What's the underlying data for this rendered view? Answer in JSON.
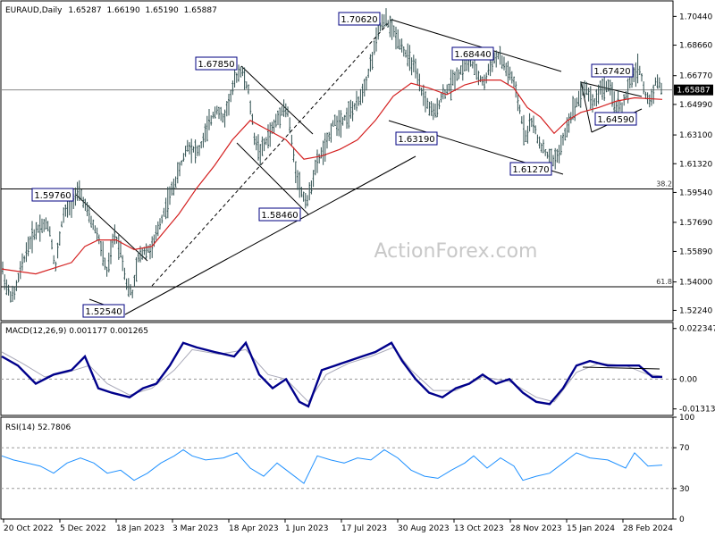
{
  "chart_data": {
    "type": "ohlc",
    "header": {
      "symbol": "EURAUD,Daily",
      "open": "1.65287",
      "high": "1.66190",
      "low": "1.65190",
      "close": "1.65887"
    },
    "watermark": "ActionForex.com",
    "price_axis": {
      "range": [
        1.516,
        1.714
      ],
      "ticks": [
        "1.70440",
        "1.68660",
        "1.66770",
        "1.64990",
        "1.63100",
        "1.61320",
        "1.59540",
        "1.57690",
        "1.55890",
        "1.54000",
        "1.52240"
      ],
      "current_price": "1.65887",
      "current_value": 1.65887
    },
    "x_axis": {
      "labels": [
        "20 Oct 2022",
        "5 Dec 2022",
        "18 Jan 2023",
        "3 Mar 2023",
        "18 Apr 2023",
        "1 Jun 2023",
        "17 Jul 2023",
        "30 Aug 2023",
        "13 Oct 2023",
        "28 Nov 2023",
        "15 Jan 2024",
        "28 Feb 2024"
      ]
    },
    "fib_levels": [
      {
        "label": "38.2",
        "value": 1.5976
      },
      {
        "label": "61.8",
        "value": 1.537
      }
    ],
    "price_labels": [
      "1.70620",
      "1.68440",
      "1.67850",
      "1.67420",
      "1.64590",
      "1.63190",
      "1.61270",
      "1.59760",
      "1.58460",
      "1.52540"
    ],
    "price_path": [
      [
        0,
        1.555
      ],
      [
        8,
        1.535
      ],
      [
        15,
        1.53
      ],
      [
        22,
        1.545
      ],
      [
        30,
        1.56
      ],
      [
        38,
        1.57
      ],
      [
        45,
        1.575
      ],
      [
        55,
        1.575
      ],
      [
        62,
        1.548
      ],
      [
        70,
        1.58
      ],
      [
        82,
        1.592
      ],
      [
        90,
        1.595
      ],
      [
        100,
        1.58
      ],
      [
        110,
        1.568
      ],
      [
        120,
        1.545
      ],
      [
        128,
        1.57
      ],
      [
        135,
        1.56
      ],
      [
        142,
        1.538
      ],
      [
        148,
        1.532
      ],
      [
        155,
        1.555
      ],
      [
        162,
        1.56
      ],
      [
        170,
        1.56
      ],
      [
        178,
        1.575
      ],
      [
        188,
        1.59
      ],
      [
        200,
        1.608
      ],
      [
        210,
        1.625
      ],
      [
        222,
        1.62
      ],
      [
        232,
        1.635
      ],
      [
        242,
        1.648
      ],
      [
        250,
        1.64
      ],
      [
        258,
        1.655
      ],
      [
        265,
        1.668
      ],
      [
        270,
        1.672
      ],
      [
        278,
        1.658
      ],
      [
        285,
        1.628
      ],
      [
        292,
        1.62
      ],
      [
        300,
        1.63
      ],
      [
        308,
        1.638
      ],
      [
        316,
        1.648
      ],
      [
        322,
        1.645
      ],
      [
        330,
        1.612
      ],
      [
        338,
        1.594
      ],
      [
        345,
        1.59
      ],
      [
        350,
        1.605
      ],
      [
        358,
        1.618
      ],
      [
        366,
        1.625
      ],
      [
        372,
        1.638
      ],
      [
        382,
        1.64
      ],
      [
        392,
        1.645
      ],
      [
        400,
        1.65
      ],
      [
        410,
        1.665
      ],
      [
        418,
        1.682
      ],
      [
        425,
        1.698
      ],
      [
        432,
        1.702
      ],
      [
        440,
        1.695
      ],
      [
        448,
        1.688
      ],
      [
        455,
        1.68
      ],
      [
        462,
        1.675
      ],
      [
        470,
        1.66
      ],
      [
        478,
        1.65
      ],
      [
        486,
        1.643
      ],
      [
        494,
        1.655
      ],
      [
        502,
        1.66
      ],
      [
        510,
        1.668
      ],
      [
        518,
        1.672
      ],
      [
        526,
        1.678
      ],
      [
        534,
        1.668
      ],
      [
        542,
        1.663
      ],
      [
        550,
        1.676
      ],
      [
        558,
        1.68
      ],
      [
        566,
        1.672
      ],
      [
        574,
        1.665
      ],
      [
        582,
        1.645
      ],
      [
        588,
        1.63
      ],
      [
        595,
        1.64
      ],
      [
        602,
        1.628
      ],
      [
        610,
        1.62
      ],
      [
        618,
        1.615
      ],
      [
        626,
        1.62
      ],
      [
        634,
        1.635
      ],
      [
        640,
        1.645
      ],
      [
        646,
        1.652
      ],
      [
        652,
        1.66
      ],
      [
        658,
        1.658
      ],
      [
        664,
        1.65
      ],
      [
        672,
        1.66
      ],
      [
        680,
        1.662
      ],
      [
        688,
        1.65
      ],
      [
        696,
        1.648
      ],
      [
        702,
        1.658
      ],
      [
        710,
        1.67
      ],
      [
        716,
        1.672
      ],
      [
        722,
        1.655
      ],
      [
        728,
        1.652
      ],
      [
        734,
        1.665
      ],
      [
        742,
        1.659
      ]
    ],
    "ma_path": [
      [
        2,
        1.548
      ],
      [
        40,
        1.545
      ],
      [
        80,
        1.552
      ],
      [
        95,
        1.562
      ],
      [
        110,
        1.566
      ],
      [
        130,
        1.566
      ],
      [
        150,
        1.56
      ],
      [
        170,
        1.562
      ],
      [
        185,
        1.572
      ],
      [
        200,
        1.582
      ],
      [
        220,
        1.598
      ],
      [
        240,
        1.612
      ],
      [
        260,
        1.628
      ],
      [
        280,
        1.64
      ],
      [
        300,
        1.634
      ],
      [
        320,
        1.628
      ],
      [
        340,
        1.616
      ],
      [
        360,
        1.618
      ],
      [
        380,
        1.622
      ],
      [
        400,
        1.628
      ],
      [
        420,
        1.64
      ],
      [
        440,
        1.655
      ],
      [
        460,
        1.663
      ],
      [
        480,
        1.66
      ],
      [
        500,
        1.656
      ],
      [
        520,
        1.662
      ],
      [
        540,
        1.665
      ],
      [
        560,
        1.665
      ],
      [
        575,
        1.66
      ],
      [
        590,
        1.648
      ],
      [
        605,
        1.642
      ],
      [
        620,
        1.632
      ],
      [
        635,
        1.64
      ],
      [
        650,
        1.645
      ],
      [
        670,
        1.648
      ],
      [
        690,
        1.652
      ],
      [
        710,
        1.654
      ],
      [
        741,
        1.653
      ]
    ],
    "macd": {
      "label": "MACD(12,26,9) 0.001177 0.001265",
      "range": [
        -0.016,
        0.025
      ],
      "ticks": [
        "0.022347",
        "0.00",
        "-0.013137"
      ],
      "macd_path": [
        [
          2,
          0.01
        ],
        [
          20,
          0.006
        ],
        [
          40,
          -0.002
        ],
        [
          60,
          0.002
        ],
        [
          80,
          0.004
        ],
        [
          95,
          0.01
        ],
        [
          110,
          -0.004
        ],
        [
          125,
          -0.006
        ],
        [
          145,
          -0.008
        ],
        [
          160,
          -0.004
        ],
        [
          175,
          -0.002
        ],
        [
          190,
          0.006
        ],
        [
          205,
          0.016
        ],
        [
          220,
          0.014
        ],
        [
          240,
          0.012
        ],
        [
          262,
          0.01
        ],
        [
          275,
          0.016
        ],
        [
          290,
          0.002
        ],
        [
          305,
          -0.004
        ],
        [
          320,
          0.0
        ],
        [
          335,
          -0.01
        ],
        [
          345,
          -0.012
        ],
        [
          360,
          0.004
        ],
        [
          375,
          0.006
        ],
        [
          390,
          0.008
        ],
        [
          405,
          0.01
        ],
        [
          420,
          0.012
        ],
        [
          438,
          0.016
        ],
        [
          450,
          0.008
        ],
        [
          465,
          0.0
        ],
        [
          480,
          -0.006
        ],
        [
          495,
          -0.008
        ],
        [
          510,
          -0.004
        ],
        [
          525,
          -0.002
        ],
        [
          540,
          0.002
        ],
        [
          555,
          -0.002
        ],
        [
          570,
          0.0
        ],
        [
          585,
          -0.006
        ],
        [
          600,
          -0.01
        ],
        [
          615,
          -0.011
        ],
        [
          630,
          -0.004
        ],
        [
          645,
          0.006
        ],
        [
          660,
          0.008
        ],
        [
          680,
          0.006
        ],
        [
          700,
          0.006
        ],
        [
          715,
          0.006
        ],
        [
          730,
          0.001
        ],
        [
          741,
          0.001
        ]
      ],
      "signal_path": [
        [
          2,
          0.012
        ],
        [
          25,
          0.007
        ],
        [
          50,
          0.001
        ],
        [
          75,
          0.003
        ],
        [
          100,
          0.006
        ],
        [
          120,
          -0.002
        ],
        [
          145,
          -0.007
        ],
        [
          170,
          -0.004
        ],
        [
          195,
          0.004
        ],
        [
          215,
          0.013
        ],
        [
          245,
          0.011
        ],
        [
          275,
          0.013
        ],
        [
          300,
          0.002
        ],
        [
          320,
          0.0
        ],
        [
          345,
          -0.01
        ],
        [
          365,
          0.002
        ],
        [
          390,
          0.007
        ],
        [
          415,
          0.01
        ],
        [
          440,
          0.014
        ],
        [
          460,
          0.004
        ],
        [
          485,
          -0.005
        ],
        [
          510,
          -0.005
        ],
        [
          540,
          0.001
        ],
        [
          570,
          -0.001
        ],
        [
          600,
          -0.008
        ],
        [
          620,
          -0.01
        ],
        [
          645,
          0.003
        ],
        [
          670,
          0.007
        ],
        [
          700,
          0.006
        ],
        [
          725,
          0.002
        ],
        [
          741,
          0.0013
        ]
      ]
    },
    "rsi": {
      "label": "RSI(14) 52.7806",
      "range": [
        0,
        100
      ],
      "ticks": [
        "100",
        "70",
        "30",
        "0"
      ],
      "reference_levels": [
        70,
        30
      ],
      "rsi_path": [
        [
          2,
          62
        ],
        [
          15,
          58
        ],
        [
          30,
          55
        ],
        [
          45,
          52
        ],
        [
          60,
          45
        ],
        [
          75,
          55
        ],
        [
          90,
          60
        ],
        [
          105,
          55
        ],
        [
          120,
          45
        ],
        [
          135,
          48
        ],
        [
          150,
          38
        ],
        [
          165,
          45
        ],
        [
          180,
          55
        ],
        [
          195,
          62
        ],
        [
          205,
          68
        ],
        [
          215,
          62
        ],
        [
          230,
          58
        ],
        [
          250,
          60
        ],
        [
          265,
          65
        ],
        [
          280,
          50
        ],
        [
          295,
          42
        ],
        [
          310,
          55
        ],
        [
          325,
          45
        ],
        [
          340,
          35
        ],
        [
          355,
          62
        ],
        [
          370,
          58
        ],
        [
          385,
          55
        ],
        [
          400,
          60
        ],
        [
          415,
          58
        ],
        [
          430,
          68
        ],
        [
          445,
          60
        ],
        [
          460,
          48
        ],
        [
          475,
          42
        ],
        [
          490,
          40
        ],
        [
          505,
          48
        ],
        [
          520,
          55
        ],
        [
          530,
          62
        ],
        [
          545,
          50
        ],
        [
          560,
          60
        ],
        [
          575,
          52
        ],
        [
          585,
          38
        ],
        [
          600,
          42
        ],
        [
          615,
          45
        ],
        [
          630,
          55
        ],
        [
          645,
          65
        ],
        [
          660,
          60
        ],
        [
          680,
          58
        ],
        [
          700,
          50
        ],
        [
          710,
          65
        ],
        [
          725,
          52
        ],
        [
          741,
          53
        ]
      ]
    }
  }
}
